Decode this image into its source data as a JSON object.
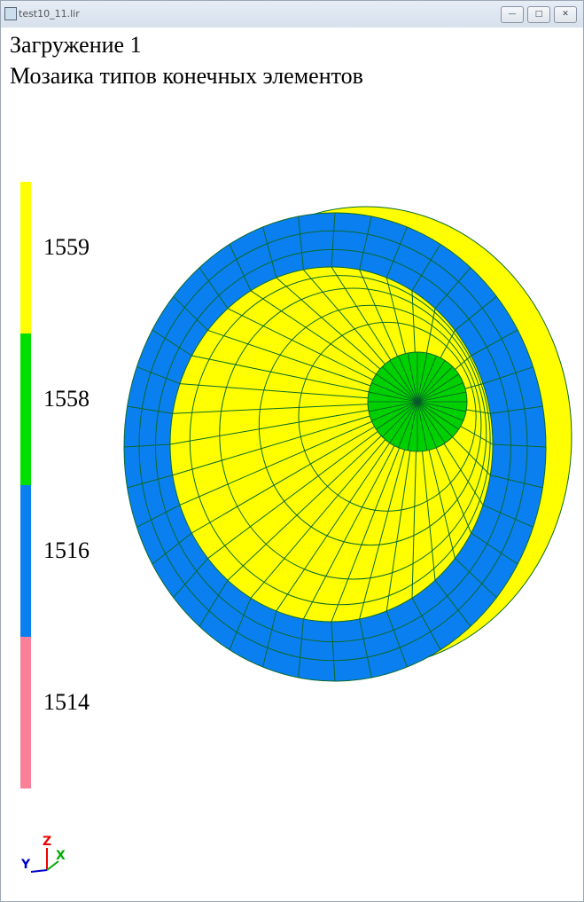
{
  "window": {
    "title": "test10_11.lir"
  },
  "header": {
    "line1": "Загружение 1",
    "line2": "Мозаика типов конечных элементов"
  },
  "legend": {
    "items": [
      {
        "label": "1559",
        "color": "#ffff00"
      },
      {
        "label": "1558",
        "color": "#00e000"
      },
      {
        "label": "1516",
        "color": "#0a7ff0"
      },
      {
        "label": "1514",
        "color": "#f88098"
      }
    ]
  },
  "axes": {
    "z": "Z",
    "y": "Y",
    "x": "X"
  }
}
